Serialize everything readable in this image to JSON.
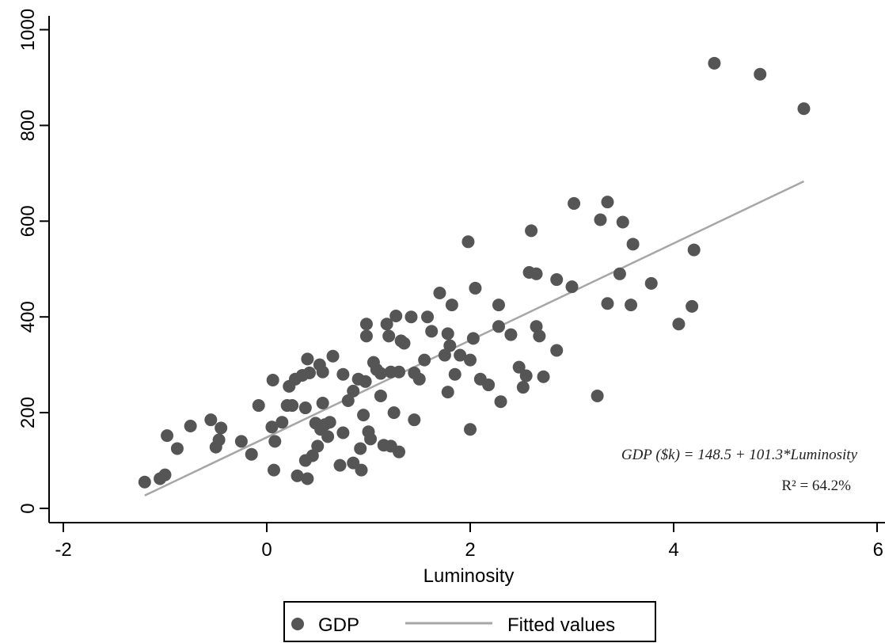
{
  "chart_data": {
    "type": "scatter",
    "xlabel": "Luminosity",
    "ylabel": "",
    "xlim": [
      -2,
      6
    ],
    "ylim": [
      0,
      1000
    ],
    "xticks": [
      -2,
      0,
      2,
      4,
      6
    ],
    "yticks": [
      0,
      200,
      400,
      600,
      800,
      1000
    ],
    "xtick_labels": [
      "-2",
      "0",
      "2",
      "4",
      "6"
    ],
    "ytick_labels": [
      "0",
      "200",
      "400",
      "600",
      "800",
      "1000"
    ],
    "grid": false,
    "legend_position": "bottom",
    "series": [
      {
        "name": "GDP",
        "type": "scatter",
        "color": "#555555",
        "points": [
          [
            -1.2,
            55
          ],
          [
            -1.05,
            62
          ],
          [
            -1.0,
            70
          ],
          [
            -0.98,
            152
          ],
          [
            -0.88,
            125
          ],
          [
            -0.75,
            172
          ],
          [
            -0.55,
            185
          ],
          [
            -0.5,
            128
          ],
          [
            -0.47,
            143
          ],
          [
            -0.45,
            168
          ],
          [
            -0.25,
            140
          ],
          [
            -0.15,
            113
          ],
          [
            -0.08,
            215
          ],
          [
            0.05,
            170
          ],
          [
            0.06,
            268
          ],
          [
            0.07,
            80
          ],
          [
            0.08,
            140
          ],
          [
            0.15,
            180
          ],
          [
            0.2,
            215
          ],
          [
            0.22,
            255
          ],
          [
            0.25,
            215
          ],
          [
            0.28,
            270
          ],
          [
            0.3,
            68
          ],
          [
            0.35,
            278
          ],
          [
            0.38,
            210
          ],
          [
            0.38,
            100
          ],
          [
            0.4,
            312
          ],
          [
            0.4,
            62
          ],
          [
            0.42,
            283
          ],
          [
            0.45,
            110
          ],
          [
            0.48,
            178
          ],
          [
            0.5,
            130
          ],
          [
            0.52,
            300
          ],
          [
            0.53,
            165
          ],
          [
            0.55,
            285
          ],
          [
            0.55,
            220
          ],
          [
            0.57,
            175
          ],
          [
            0.6,
            150
          ],
          [
            0.62,
            180
          ],
          [
            0.65,
            318
          ],
          [
            0.72,
            90
          ],
          [
            0.75,
            280
          ],
          [
            0.75,
            158
          ],
          [
            0.8,
            225
          ],
          [
            0.85,
            245
          ],
          [
            0.85,
            95
          ],
          [
            0.9,
            270
          ],
          [
            0.92,
            125
          ],
          [
            0.93,
            80
          ],
          [
            0.95,
            195
          ],
          [
            0.97,
            265
          ],
          [
            0.98,
            360
          ],
          [
            0.98,
            385
          ],
          [
            1.0,
            160
          ],
          [
            1.02,
            145
          ],
          [
            1.05,
            305
          ],
          [
            1.08,
            290
          ],
          [
            1.12,
            282
          ],
          [
            1.12,
            235
          ],
          [
            1.15,
            132
          ],
          [
            1.18,
            385
          ],
          [
            1.2,
            360
          ],
          [
            1.22,
            285
          ],
          [
            1.22,
            130
          ],
          [
            1.25,
            200
          ],
          [
            1.27,
            402
          ],
          [
            1.3,
            285
          ],
          [
            1.3,
            118
          ],
          [
            1.32,
            350
          ],
          [
            1.35,
            345
          ],
          [
            1.42,
            400
          ],
          [
            1.45,
            283
          ],
          [
            1.45,
            185
          ],
          [
            1.5,
            270
          ],
          [
            1.55,
            310
          ],
          [
            1.58,
            400
          ],
          [
            1.62,
            370
          ],
          [
            1.7,
            450
          ],
          [
            1.75,
            320
          ],
          [
            1.78,
            365
          ],
          [
            1.78,
            243
          ],
          [
            1.8,
            340
          ],
          [
            1.82,
            425
          ],
          [
            1.85,
            280
          ],
          [
            1.9,
            320
          ],
          [
            1.98,
            557
          ],
          [
            2.0,
            310
          ],
          [
            2.0,
            165
          ],
          [
            2.03,
            355
          ],
          [
            2.05,
            460
          ],
          [
            2.1,
            270
          ],
          [
            2.18,
            258
          ],
          [
            2.28,
            425
          ],
          [
            2.28,
            380
          ],
          [
            2.3,
            223
          ],
          [
            2.4,
            363
          ],
          [
            2.48,
            295
          ],
          [
            2.52,
            253
          ],
          [
            2.55,
            277
          ],
          [
            2.58,
            493
          ],
          [
            2.6,
            580
          ],
          [
            2.65,
            490
          ],
          [
            2.65,
            380
          ],
          [
            2.68,
            360
          ],
          [
            2.72,
            275
          ],
          [
            2.85,
            478
          ],
          [
            2.85,
            330
          ],
          [
            3.0,
            463
          ],
          [
            3.02,
            637
          ],
          [
            3.25,
            235
          ],
          [
            3.28,
            603
          ],
          [
            3.35,
            640
          ],
          [
            3.35,
            428
          ],
          [
            3.47,
            490
          ],
          [
            3.5,
            598
          ],
          [
            3.58,
            425
          ],
          [
            3.6,
            552
          ],
          [
            3.78,
            470
          ],
          [
            4.05,
            385
          ],
          [
            4.18,
            422
          ],
          [
            4.2,
            540
          ],
          [
            4.4,
            930
          ],
          [
            4.85,
            907
          ],
          [
            5.28,
            835
          ]
        ]
      },
      {
        "name": "Fitted values",
        "type": "line",
        "color": "#a6a6a6",
        "x": [
          -1.2,
          5.28
        ],
        "y": [
          26.9,
          683.3
        ]
      }
    ],
    "annotations": [
      {
        "text": "GDP ($k) = 148.5 + 101.3*Luminosity",
        "style": "italic"
      },
      {
        "text": "R² = 64.2%",
        "style": "normal"
      }
    ]
  },
  "legend": {
    "items": [
      {
        "label": "GDP",
        "marker": "circle",
        "color": "#555555"
      },
      {
        "label": "Fitted values",
        "marker": "line",
        "color": "#a6a6a6"
      }
    ]
  },
  "colors": {
    "marker": "#555555",
    "fit_line": "#a6a6a6",
    "axis": "#000000"
  }
}
